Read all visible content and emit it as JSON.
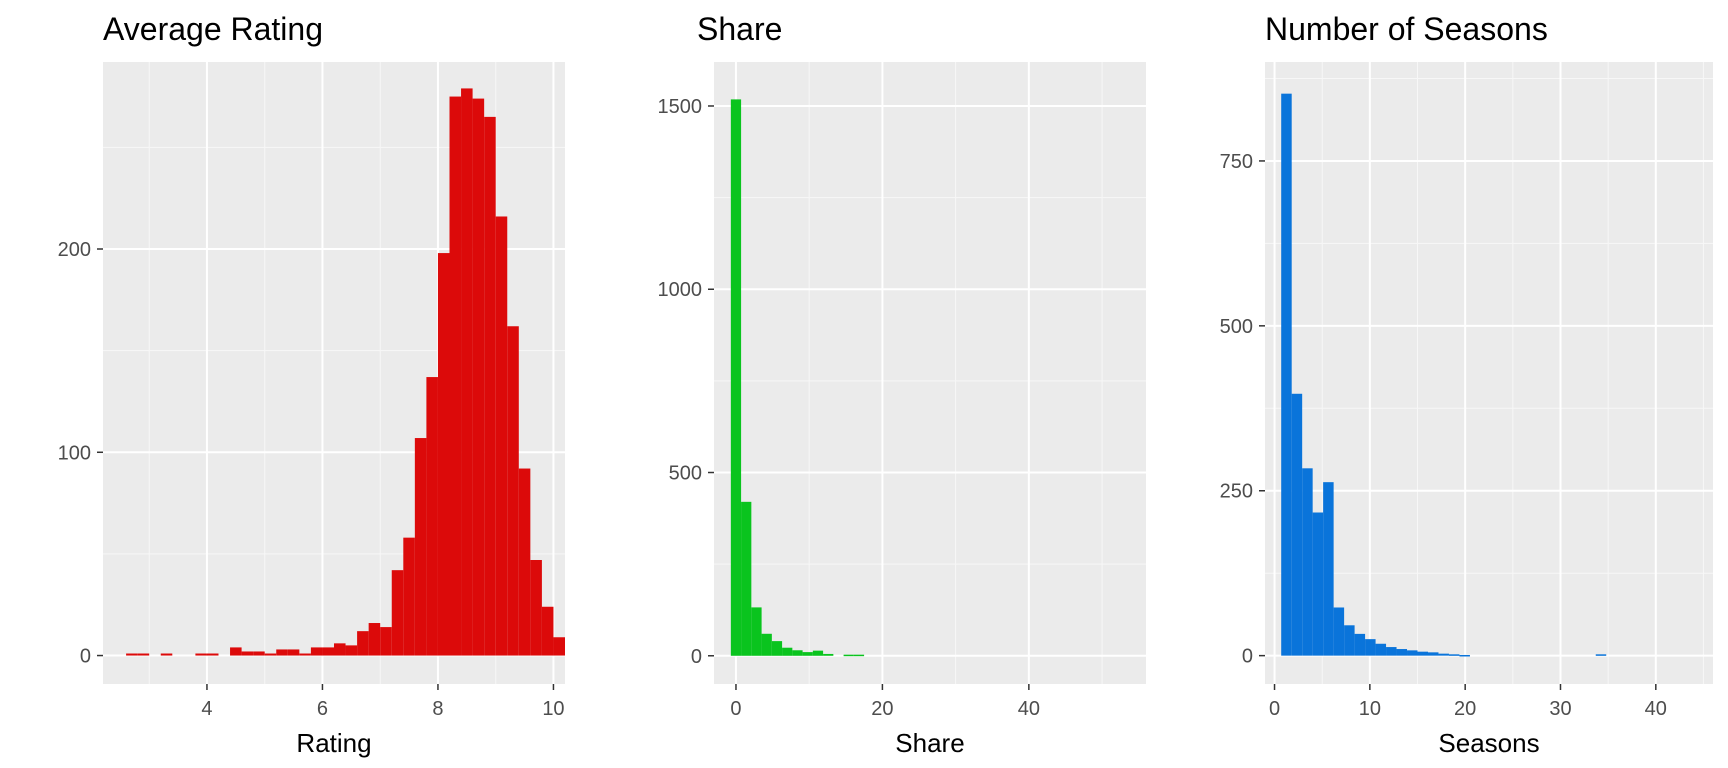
{
  "chart_data": [
    {
      "type": "bar",
      "title": "Average Rating",
      "xlabel": "Rating",
      "ylabel": "",
      "xlim": [
        2.2,
        10.2
      ],
      "ylim": [
        -14,
        292
      ],
      "xticks": [
        4,
        6,
        8,
        10
      ],
      "xtick_labels": [
        "4",
        "6",
        "8",
        "10"
      ],
      "yticks": [
        0,
        100,
        200
      ],
      "ytick_labels": [
        "0",
        "100",
        "200"
      ],
      "grid": true,
      "bar_color": "#DC0A0A",
      "bins": [
        {
          "x0": 2.6,
          "x1": 2.8,
          "y": 1
        },
        {
          "x0": 2.8,
          "x1": 3.0,
          "y": 1
        },
        {
          "x0": 3.2,
          "x1": 3.4,
          "y": 1
        },
        {
          "x0": 3.8,
          "x1": 4.0,
          "y": 1
        },
        {
          "x0": 4.0,
          "x1": 4.2,
          "y": 1
        },
        {
          "x0": 4.4,
          "x1": 4.6,
          "y": 4
        },
        {
          "x0": 4.6,
          "x1": 4.8,
          "y": 2
        },
        {
          "x0": 4.8,
          "x1": 5.0,
          "y": 2
        },
        {
          "x0": 5.0,
          "x1": 5.2,
          "y": 1
        },
        {
          "x0": 5.2,
          "x1": 5.4,
          "y": 3
        },
        {
          "x0": 5.4,
          "x1": 5.6,
          "y": 3
        },
        {
          "x0": 5.6,
          "x1": 5.8,
          "y": 1
        },
        {
          "x0": 5.8,
          "x1": 6.0,
          "y": 4
        },
        {
          "x0": 6.0,
          "x1": 6.2,
          "y": 4
        },
        {
          "x0": 6.2,
          "x1": 6.4,
          "y": 6
        },
        {
          "x0": 6.4,
          "x1": 6.6,
          "y": 5
        },
        {
          "x0": 6.6,
          "x1": 6.8,
          "y": 12
        },
        {
          "x0": 6.8,
          "x1": 7.0,
          "y": 16
        },
        {
          "x0": 7.0,
          "x1": 7.2,
          "y": 14
        },
        {
          "x0": 7.2,
          "x1": 7.4,
          "y": 42
        },
        {
          "x0": 7.4,
          "x1": 7.6,
          "y": 58
        },
        {
          "x0": 7.6,
          "x1": 7.8,
          "y": 107
        },
        {
          "x0": 7.8,
          "x1": 8.0,
          "y": 137
        },
        {
          "x0": 8.0,
          "x1": 8.2,
          "y": 198
        },
        {
          "x0": 8.2,
          "x1": 8.4,
          "y": 275
        },
        {
          "x0": 8.4,
          "x1": 8.6,
          "y": 279
        },
        {
          "x0": 8.6,
          "x1": 8.8,
          "y": 274
        },
        {
          "x0": 8.8,
          "x1": 9.0,
          "y": 265
        },
        {
          "x0": 9.0,
          "x1": 9.2,
          "y": 216
        },
        {
          "x0": 9.2,
          "x1": 9.4,
          "y": 162
        },
        {
          "x0": 9.4,
          "x1": 9.6,
          "y": 92
        },
        {
          "x0": 9.6,
          "x1": 9.8,
          "y": 47
        },
        {
          "x0": 9.8,
          "x1": 10.0,
          "y": 24
        },
        {
          "x0": 10.0,
          "x1": 10.2,
          "y": 9
        }
      ]
    },
    {
      "type": "bar",
      "title": "Share",
      "xlabel": "Share",
      "ylabel": "",
      "xlim": [
        -3,
        56
      ],
      "ylim": [
        -77,
        1620
      ],
      "xticks": [
        0,
        20,
        40
      ],
      "xtick_labels": [
        "0",
        "20",
        "40"
      ],
      "yticks": [
        0,
        500,
        1000,
        1500
      ],
      "ytick_labels": [
        "0",
        "500",
        "1000",
        "1500"
      ],
      "grid": true,
      "bar_color": "#0AC41E",
      "bins": [
        {
          "x0": -0.7,
          "x1": 0.7,
          "y": 1518
        },
        {
          "x0": 0.7,
          "x1": 2.1,
          "y": 420
        },
        {
          "x0": 2.1,
          "x1": 3.5,
          "y": 132
        },
        {
          "x0": 3.5,
          "x1": 4.9,
          "y": 60
        },
        {
          "x0": 4.9,
          "x1": 6.3,
          "y": 40
        },
        {
          "x0": 6.3,
          "x1": 7.7,
          "y": 22
        },
        {
          "x0": 7.7,
          "x1": 9.1,
          "y": 15
        },
        {
          "x0": 9.1,
          "x1": 10.5,
          "y": 10
        },
        {
          "x0": 10.5,
          "x1": 11.9,
          "y": 14
        },
        {
          "x0": 11.9,
          "x1": 13.3,
          "y": 5
        },
        {
          "x0": 14.7,
          "x1": 16.1,
          "y": 3
        },
        {
          "x0": 16.1,
          "x1": 17.5,
          "y": 3
        }
      ]
    },
    {
      "type": "bar",
      "title": "Number of Seasons",
      "xlabel": "Seasons",
      "ylabel": "",
      "xlim": [
        -1,
        46
      ],
      "ylim": [
        -43,
        900
      ],
      "xticks": [
        0,
        10,
        20,
        30,
        40
      ],
      "xtick_labels": [
        "0",
        "10",
        "20",
        "30",
        "40"
      ],
      "yticks": [
        0,
        250,
        500,
        750
      ],
      "ytick_labels": [
        "0",
        "250",
        "500",
        "750"
      ],
      "grid": true,
      "bar_color": "#0A74DA",
      "bins": [
        {
          "x0": 0.7,
          "x1": 1.8,
          "y": 852
        },
        {
          "x0": 1.8,
          "x1": 2.9,
          "y": 397
        },
        {
          "x0": 2.9,
          "x1": 4.0,
          "y": 284
        },
        {
          "x0": 4.0,
          "x1": 5.1,
          "y": 217
        },
        {
          "x0": 5.1,
          "x1": 6.2,
          "y": 263
        },
        {
          "x0": 6.2,
          "x1": 7.3,
          "y": 73
        },
        {
          "x0": 7.3,
          "x1": 8.4,
          "y": 46
        },
        {
          "x0": 8.4,
          "x1": 9.5,
          "y": 33
        },
        {
          "x0": 9.5,
          "x1": 10.6,
          "y": 25
        },
        {
          "x0": 10.6,
          "x1": 11.7,
          "y": 18
        },
        {
          "x0": 11.7,
          "x1": 12.8,
          "y": 13
        },
        {
          "x0": 12.8,
          "x1": 13.9,
          "y": 10
        },
        {
          "x0": 13.9,
          "x1": 15.0,
          "y": 8
        },
        {
          "x0": 15.0,
          "x1": 16.1,
          "y": 6
        },
        {
          "x0": 16.1,
          "x1": 17.2,
          "y": 5
        },
        {
          "x0": 17.2,
          "x1": 18.3,
          "y": 3
        },
        {
          "x0": 18.3,
          "x1": 19.4,
          "y": 2
        },
        {
          "x0": 19.4,
          "x1": 20.5,
          "y": 1
        },
        {
          "x0": 33.7,
          "x1": 34.8,
          "y": 2
        }
      ]
    }
  ]
}
